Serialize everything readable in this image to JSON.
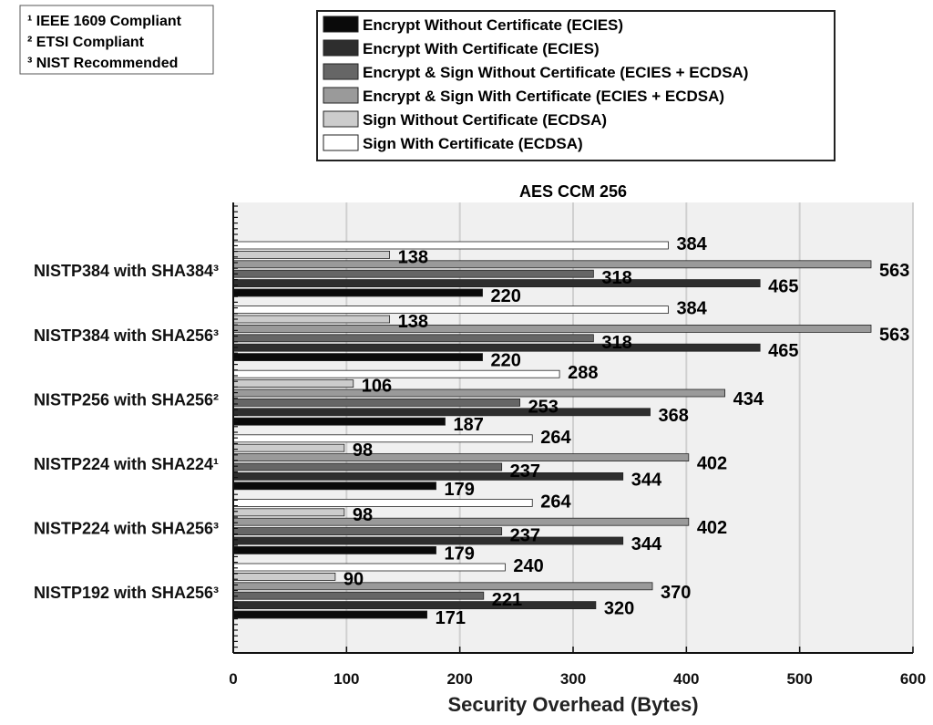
{
  "notes": [
    "¹ IEEE 1609 Compliant",
    "² ETSI Compliant",
    "³ NIST Recommended"
  ],
  "chart_data": {
    "type": "bar",
    "orientation": "horizontal",
    "title": "AES CCM 256",
    "xlabel": "Security Overhead (Bytes)",
    "ylabel": "",
    "xlim": [
      0,
      600
    ],
    "xticks": [
      0,
      100,
      200,
      300,
      400,
      500,
      600
    ],
    "grid": true,
    "legend_position": "top",
    "categories": [
      "NISTP384 with SHA384³",
      "NISTP384 with SHA256³",
      "NISTP256 with SHA256²",
      "NISTP224 with SHA224¹",
      "NISTP224 with SHA256³",
      "NISTP192 with SHA256³"
    ],
    "series": [
      {
        "name": "Encrypt Without Certificate (ECIES)",
        "color": "#0a0a0a",
        "values": [
          220,
          220,
          187,
          179,
          179,
          171
        ]
      },
      {
        "name": "Encrypt With Certificate (ECIES)",
        "color": "#2e2e2e",
        "values": [
          465,
          465,
          368,
          344,
          344,
          320
        ]
      },
      {
        "name": "Encrypt & Sign Without Certificate (ECIES + ECDSA)",
        "color": "#666666",
        "values": [
          318,
          318,
          253,
          237,
          237,
          221
        ]
      },
      {
        "name": "Encrypt & Sign With Certificate (ECIES + ECDSA)",
        "color": "#9a9a9a",
        "values": [
          563,
          563,
          434,
          402,
          402,
          370
        ]
      },
      {
        "name": "Sign Without Certificate (ECDSA)",
        "color": "#cccccc",
        "values": [
          138,
          138,
          106,
          98,
          98,
          90
        ]
      },
      {
        "name": "Sign With Certificate (ECDSA)",
        "color": "#ffffff",
        "values": [
          384,
          384,
          288,
          264,
          264,
          240
        ]
      }
    ]
  }
}
